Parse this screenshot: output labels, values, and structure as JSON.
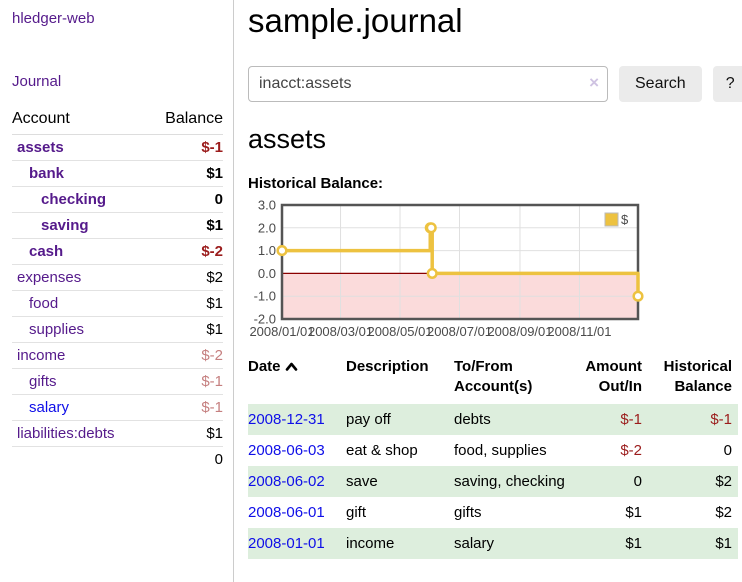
{
  "colors": {
    "link_purple": "#551a8b",
    "link_blue": "#0f0fe8",
    "negative_strong": "#9b1c1c",
    "negative_soft": "#c57f7f",
    "row_stripe_green": "#ddeedd"
  },
  "icons": {
    "clear_search": "×",
    "sort_ascending": "chevron-up"
  },
  "sidebar": {
    "brand": "hledger-web",
    "journal_link": "Journal",
    "headers": {
      "account": "Account",
      "balance": "Balance"
    },
    "accounts": [
      {
        "name": "assets",
        "level": 1,
        "bold": true,
        "link": "purple",
        "balance": "$-1",
        "balance_tone": "neg-strong"
      },
      {
        "name": "bank",
        "level": 2,
        "bold": true,
        "link": "purple",
        "balance": "$1",
        "balance_tone": "normal"
      },
      {
        "name": "checking",
        "level": 3,
        "bold": true,
        "link": "purple",
        "balance": "0",
        "balance_tone": "normal"
      },
      {
        "name": "saving",
        "level": 3,
        "bold": true,
        "link": "purple",
        "balance": "$1",
        "balance_tone": "normal"
      },
      {
        "name": "cash",
        "level": 2,
        "bold": true,
        "link": "purple",
        "balance": "$-2",
        "balance_tone": "neg-strong"
      },
      {
        "name": "expenses",
        "level": 1,
        "bold": false,
        "link": "purple",
        "balance": "$2",
        "balance_tone": "normal"
      },
      {
        "name": "food",
        "level": 2,
        "bold": false,
        "link": "purple",
        "balance": "$1",
        "balance_tone": "normal"
      },
      {
        "name": "supplies",
        "level": 2,
        "bold": false,
        "link": "purple",
        "balance": "$1",
        "balance_tone": "normal"
      },
      {
        "name": "income",
        "level": 1,
        "bold": false,
        "link": "purple",
        "balance": "$-2",
        "balance_tone": "neg-soft"
      },
      {
        "name": "gifts",
        "level": 2,
        "bold": false,
        "link": "purple",
        "balance": "$-1",
        "balance_tone": "neg-soft"
      },
      {
        "name": "salary",
        "level": 2,
        "bold": false,
        "link": "blue",
        "balance": "$-1",
        "balance_tone": "neg-soft"
      },
      {
        "name": "liabilities:debts",
        "level": 1,
        "bold": false,
        "link": "purple",
        "balance": "$1",
        "balance_tone": "normal"
      }
    ],
    "total": "0"
  },
  "main": {
    "title": "sample.journal",
    "search": {
      "value": "inacct:assets",
      "clear_icon": "×",
      "button_label": "Search",
      "help_label": "?"
    },
    "account_heading": "assets",
    "chart_label": "Historical Balance:"
  },
  "chart_data": {
    "type": "line",
    "step": "after",
    "series": [
      {
        "name": "$",
        "points": [
          [
            "2008-01-01",
            1
          ],
          [
            "2008-06-01",
            2
          ],
          [
            "2008-06-02",
            2
          ],
          [
            "2008-06-03",
            0
          ],
          [
            "2008-12-31",
            -1
          ]
        ]
      }
    ],
    "x_ticks": [
      "2008/01/01",
      "2008/03/01",
      "2008/05/01",
      "2008/07/01",
      "2008/09/01",
      "2008/11/01"
    ],
    "y_ticks": [
      "3.0",
      "2.0",
      "1.0",
      "0.0",
      "-1.0",
      "-2.0"
    ],
    "ylim": [
      -2,
      3
    ],
    "x_range_days": 365,
    "legend": "$",
    "grid": true,
    "legend_position": "top-right",
    "colors": {
      "line": "#edc240",
      "marker_fill": "#ffffff",
      "negative_region": "#fbdbdb",
      "zero_line": "#8b0000",
      "grid": "#e0e0e0",
      "border": "#545454",
      "tick_text": "#4a4a4a"
    }
  },
  "register": {
    "headers": {
      "date": "Date",
      "description": "Description",
      "accounts": "To/From Account(s)",
      "amount": "Amount Out/In",
      "balance": "Historical Balance"
    },
    "rows": [
      {
        "date": "2008-12-31",
        "description": "pay off",
        "accounts": "debts",
        "amount": "$-1",
        "amount_negative": true,
        "balance": "$-1",
        "balance_negative": true
      },
      {
        "date": "2008-06-03",
        "description": "eat & shop",
        "accounts": "food, supplies",
        "amount": "$-2",
        "amount_negative": true,
        "balance": "0",
        "balance_negative": false
      },
      {
        "date": "2008-06-02",
        "description": "save",
        "accounts": "saving, checking",
        "amount": "0",
        "amount_negative": false,
        "balance": "$2",
        "balance_negative": false
      },
      {
        "date": "2008-06-01",
        "description": "gift",
        "accounts": "gifts",
        "amount": "$1",
        "amount_negative": false,
        "balance": "$2",
        "balance_negative": false
      },
      {
        "date": "2008-01-01",
        "description": "income",
        "accounts": "salary",
        "amount": "$1",
        "amount_negative": false,
        "balance": "$1",
        "balance_negative": false
      }
    ]
  }
}
